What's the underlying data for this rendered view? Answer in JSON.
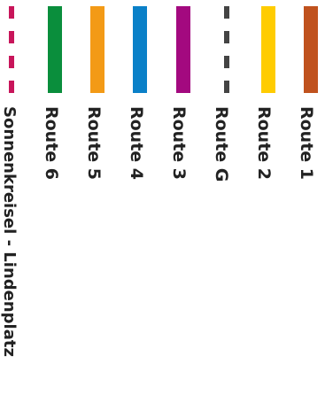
{
  "legend": {
    "routes": [
      {
        "key": "route1",
        "label": "Route 1",
        "color": "#C0521E",
        "style": "solid"
      },
      {
        "key": "route2",
        "label": "Route 2",
        "color": "#FFCC00",
        "style": "solid"
      },
      {
        "key": "routeG",
        "label": "Route G",
        "color": "#444444",
        "style": "dashed"
      },
      {
        "key": "route3",
        "label": "Route 3",
        "color": "#A3097F",
        "style": "solid"
      },
      {
        "key": "route4",
        "label": "Route 4",
        "color": "#0A80C8",
        "style": "solid"
      },
      {
        "key": "route5",
        "label": "Route 5",
        "color": "#F39A16",
        "style": "solid"
      },
      {
        "key": "route6",
        "label": "Route 6",
        "color": "#0A8E3C",
        "style": "solid"
      },
      {
        "key": "sonnenkreisel",
        "label": "Sonnenkreisel - Lindenplatz",
        "color": "#C8155A",
        "style": "dashed"
      }
    ]
  }
}
